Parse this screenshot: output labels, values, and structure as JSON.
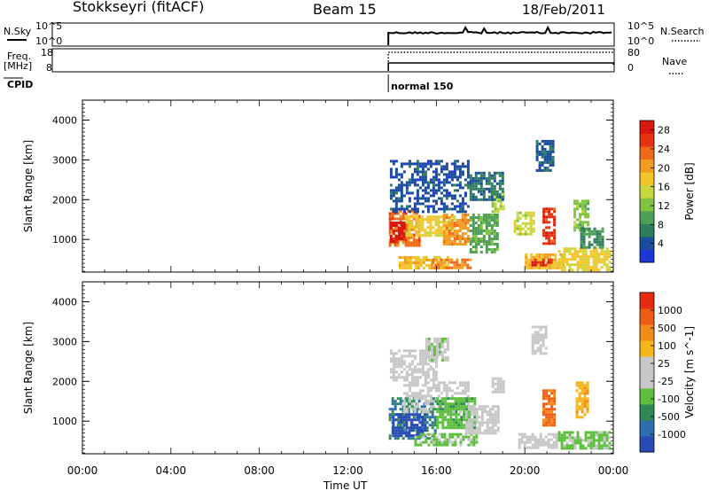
{
  "header": {
    "station": "Stokkseyri (fitACF)",
    "beam": "Beam 15",
    "date": "18/Feb/2011"
  },
  "strips": {
    "nsky_label": "N.Sky",
    "nsky_ticks": [
      "10^5",
      "10^0"
    ],
    "nsearch_label": "N.Search",
    "nsearch_ticks": [
      "10^5",
      "10^0"
    ],
    "freq_label": "Freq.",
    "freq_unit": "[MHz]",
    "freq_ticks": [
      "18",
      "8"
    ],
    "nave_label": "Nave",
    "nave_ticks": [
      "80",
      "0"
    ],
    "cpid_label": "CPID",
    "cpid_value": "normal 150",
    "data_start_hour": 13.83
  },
  "chart_data": [
    {
      "type": "heatmap",
      "title": "",
      "xlabel": "Time UT",
      "ylabel": "Slant Range [km]",
      "xlim": [
        0,
        24
      ],
      "ylim": [
        180,
        4500
      ],
      "x_ticks": [
        "00:00",
        "04:00",
        "08:00",
        "12:00",
        "16:00",
        "20:00",
        "00:00"
      ],
      "y_ticks": [
        "1000",
        "2000",
        "3000",
        "4000"
      ],
      "colorbar": {
        "label": "Power [dB]",
        "ticks": [
          "4",
          "8",
          "12",
          "16",
          "20",
          "24",
          "28"
        ],
        "range": [
          0,
          30
        ],
        "colors": [
          "#1d36d8",
          "#1b4c9c",
          "#2e7d5e",
          "#4f9e57",
          "#7fc440",
          "#c7d73c",
          "#f2c62b",
          "#f39c21",
          "#ee6a16",
          "#e3340f",
          "#d8150f"
        ]
      },
      "regions": [
        {
          "t": [
            13.85,
            15.2
          ],
          "r": [
            850,
            1750
          ],
          "value": 23
        },
        {
          "t": [
            13.9,
            14.6
          ],
          "r": [
            950,
            1450
          ],
          "value": 28
        },
        {
          "t": [
            14.6,
            16.8
          ],
          "r": [
            1100,
            1600
          ],
          "value": 17
        },
        {
          "t": [
            16.3,
            17.5
          ],
          "r": [
            900,
            1650
          ],
          "value": 21
        },
        {
          "t": [
            14.3,
            16.5
          ],
          "r": [
            300,
            580
          ],
          "value": 18
        },
        {
          "t": [
            15.8,
            17.6
          ],
          "r": [
            280,
            520
          ],
          "value": 22
        },
        {
          "t": [
            17.5,
            18.8
          ],
          "r": [
            700,
            1650
          ],
          "value": 10
        },
        {
          "t": [
            18.5,
            19.0
          ],
          "r": [
            1700,
            2200
          ],
          "value": 14
        },
        {
          "t": [
            20.0,
            21.8
          ],
          "r": [
            250,
            650
          ],
          "value": 19
        },
        {
          "t": [
            20.3,
            21.2
          ],
          "r": [
            350,
            520
          ],
          "value": 27
        },
        {
          "t": [
            21.5,
            23.9
          ],
          "r": [
            250,
            800
          ],
          "value": 17
        },
        {
          "t": [
            20.8,
            21.4
          ],
          "r": [
            900,
            1800
          ],
          "value": 26
        },
        {
          "t": [
            19.5,
            20.4
          ],
          "r": [
            1100,
            1700
          ],
          "value": 15
        },
        {
          "t": [
            22.2,
            22.9
          ],
          "r": [
            1200,
            2000
          ],
          "value": 12
        },
        {
          "t": [
            13.9,
            17.5
          ],
          "r": [
            1700,
            3000
          ],
          "value": 4
        },
        {
          "t": [
            17.5,
            19.0
          ],
          "r": [
            2000,
            2700
          ],
          "value": 6
        },
        {
          "t": [
            20.5,
            21.3
          ],
          "r": [
            2700,
            3500
          ],
          "value": 5
        },
        {
          "t": [
            22.5,
            23.5
          ],
          "r": [
            800,
            1300
          ],
          "value": 8
        }
      ]
    },
    {
      "type": "heatmap",
      "title": "",
      "xlabel": "Time UT",
      "ylabel": "Slant Range [km]",
      "xlim": [
        0,
        24
      ],
      "ylim": [
        180,
        4500
      ],
      "x_ticks": [
        "00:00",
        "04:00",
        "08:00",
        "12:00",
        "16:00",
        "20:00",
        "00:00"
      ],
      "y_ticks": [
        "1000",
        "2000",
        "3000",
        "4000"
      ],
      "colorbar": {
        "label": "Velocity [m s^-1]",
        "ticks": [
          "1000",
          "500",
          "100",
          "25",
          "-25",
          "-100",
          "-500",
          "-1000"
        ],
        "range": [
          -1200,
          1200
        ],
        "colors": [
          "#2a4bb5",
          "#2c6fb0",
          "#2f8a55",
          "#5bbf3c",
          "#c7c7c7",
          "#c7c7c7",
          "#f5b51b",
          "#f28a18",
          "#ee5d14",
          "#e62b10"
        ]
      },
      "regions": [
        {
          "t": [
            13.85,
            16.0
          ],
          "r": [
            550,
            1600
          ],
          "value": -700
        },
        {
          "t": [
            14.0,
            15.5
          ],
          "r": [
            650,
            1200
          ],
          "value": -1100
        },
        {
          "t": [
            14.5,
            17.5
          ],
          "r": [
            1200,
            2000
          ],
          "value": 0
        },
        {
          "t": [
            15.0,
            17.8
          ],
          "r": [
            400,
            700
          ],
          "value": -300
        },
        {
          "t": [
            16.0,
            17.8
          ],
          "r": [
            800,
            1600
          ],
          "value": -400
        },
        {
          "t": [
            13.9,
            16.0
          ],
          "r": [
            2000,
            2800
          ],
          "value": 0
        },
        {
          "t": [
            17.3,
            18.8
          ],
          "r": [
            700,
            1400
          ],
          "value": 0
        },
        {
          "t": [
            18.5,
            19.0
          ],
          "r": [
            1700,
            2100
          ],
          "value": -50
        },
        {
          "t": [
            19.7,
            21.5
          ],
          "r": [
            300,
            700
          ],
          "value": -80
        },
        {
          "t": [
            20.8,
            21.4
          ],
          "r": [
            900,
            1800
          ],
          "value": 800
        },
        {
          "t": [
            21.5,
            23.9
          ],
          "r": [
            300,
            750
          ],
          "value": -300
        },
        {
          "t": [
            22.3,
            22.9
          ],
          "r": [
            1100,
            2000
          ],
          "value": 400
        },
        {
          "t": [
            20.3,
            21.0
          ],
          "r": [
            2700,
            3400
          ],
          "value": 0
        },
        {
          "t": [
            15.5,
            16.5
          ],
          "r": [
            2500,
            3100
          ],
          "value": -150
        }
      ]
    }
  ]
}
